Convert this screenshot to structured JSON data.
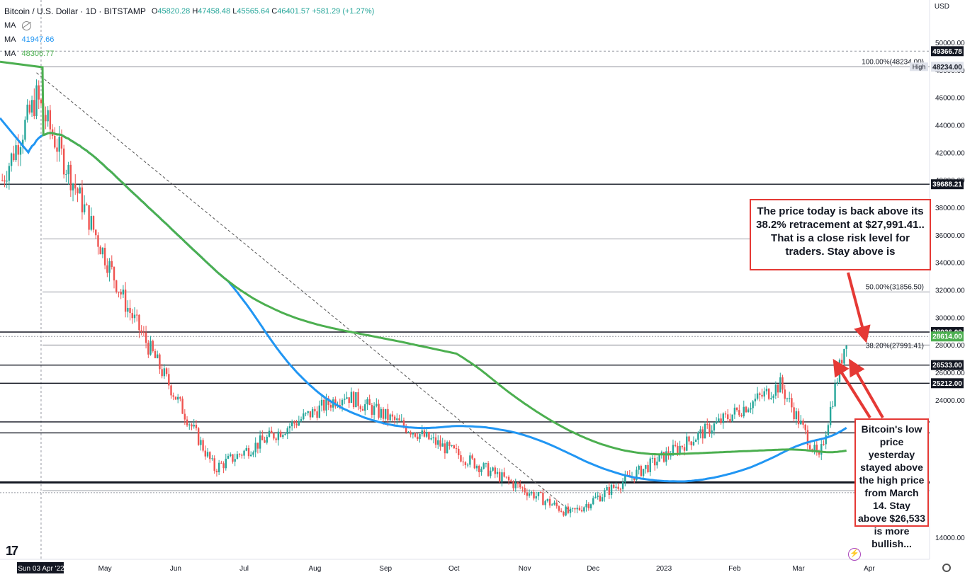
{
  "header": {
    "symbol": "Bitcoin / U.S. Dollar · 1D · BITSTAMP",
    "ohlc": [
      {
        "k": "O",
        "v": "45820.28"
      },
      {
        "k": "H",
        "v": "47458.48"
      },
      {
        "k": "L",
        "v": "45565.64"
      },
      {
        "k": "C",
        "v": "46401.57"
      }
    ],
    "change": "+581.29 (+1.27%)",
    "ma0": "MA",
    "ma1_label": "MA",
    "ma1_value": "41947.66",
    "ma2_label": "MA",
    "ma2_value": "48306.77"
  },
  "currency": "USD",
  "annotations": {
    "box1": "The price today is back above its 38.2% retracement at $27,991.41.. That is a close risk level for traders.  Stay above is",
    "box2": "Bitcoin's low price yesterday stayed above the high price from March 14. Stay above $26,533 is more bullish..."
  },
  "colors": {
    "up": "#26a69a",
    "down": "#ef5350",
    "ma_fast": "#2196f3",
    "ma_slow": "#4caf50",
    "annotation": "#e53935",
    "hline": "#131722",
    "fib": "#787b86"
  },
  "chart_data": {
    "type": "candlestick",
    "x": [
      "Sun 03 Apr '22",
      "May",
      "Jun",
      "Jul",
      "Aug",
      "Sep",
      "Oct",
      "Nov",
      "Dec",
      "2023",
      "Feb",
      "Mar",
      "Apr"
    ],
    "ylim": [
      14000,
      51000
    ],
    "y_ticks": [
      14000,
      24000,
      26000,
      28000,
      30000,
      32000,
      34000,
      36000,
      38000,
      40000,
      42000,
      44000,
      46000,
      48000,
      50000
    ],
    "price_labels": [
      {
        "text": "49366.78",
        "value": 49366.78,
        "style": "dark"
      },
      {
        "text": "48234.00",
        "value": 48234,
        "style": "light"
      },
      {
        "text": "39688.21",
        "value": 39688.21,
        "style": "dark"
      },
      {
        "text": "28936.00",
        "value": 28936,
        "style": "dark"
      },
      {
        "text": "28614.00",
        "value": 28614,
        "style": "green"
      },
      {
        "text": "26533.00",
        "value": 26533,
        "style": "dark"
      },
      {
        "text": "25212.00",
        "value": 25212,
        "style": "dark"
      }
    ],
    "horizontal_lines": [
      39688.21,
      28936,
      26533,
      25212,
      22400,
      21600,
      18000
    ],
    "fib_levels": [
      {
        "label": "100.00%(48234.00)",
        "value": 48234
      },
      {
        "label": "50.00%(31856.50)",
        "value": 31856.5
      },
      {
        "label": "38.20%(27991.41)",
        "value": 27991.41
      }
    ],
    "fib_extra_lines": [
      35700,
      17400
    ],
    "high_label": "High",
    "key_points": [
      {
        "date": "2022-04-01",
        "value": 46000
      },
      {
        "date": "2022-05-10",
        "value": 31000
      },
      {
        "date": "2022-06-18",
        "value": 19000
      },
      {
        "date": "2022-08-14",
        "value": 24400
      },
      {
        "date": "2022-11-21",
        "value": 15700
      },
      {
        "date": "2023-02-21",
        "value": 25100
      },
      {
        "date": "2023-03-10",
        "value": 19600
      },
      {
        "date": "2023-03-22",
        "value": 28614
      }
    ]
  }
}
